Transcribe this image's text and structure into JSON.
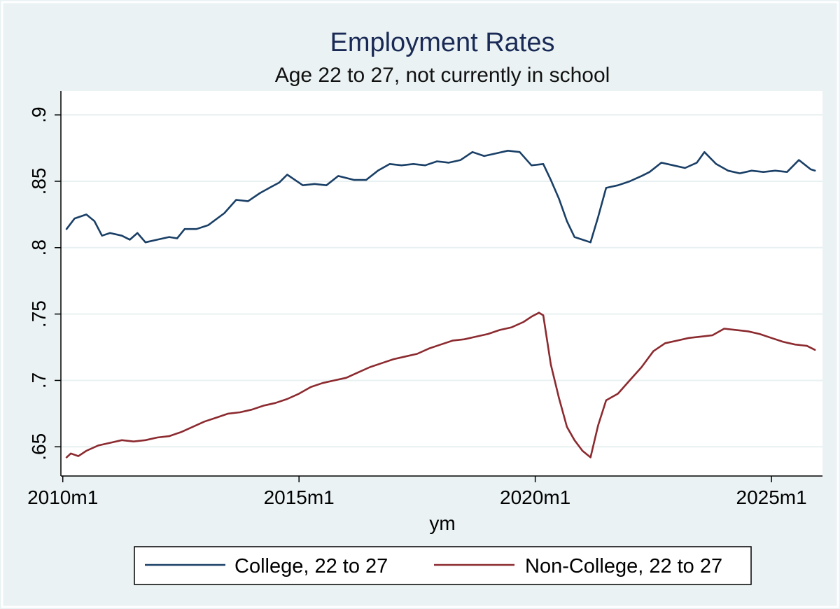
{
  "chart_data": {
    "type": "line",
    "title": "Employment Rates",
    "subtitle": "Age 22 to 27, not currently in school",
    "xlabel": "ym",
    "ylabel": "",
    "xlim": [
      2009.96,
      2026.08
    ],
    "ylim": [
      0.628,
      0.918
    ],
    "x_ticks": [
      {
        "label": "2010m1",
        "value": 2010.0
      },
      {
        "label": "2015m1",
        "value": 2015.0
      },
      {
        "label": "2020m1",
        "value": 2020.0
      },
      {
        "label": "2025m1",
        "value": 2025.0
      }
    ],
    "y_ticks": [
      {
        "label": ".65",
        "value": 0.65
      },
      {
        "label": ".7",
        "value": 0.7
      },
      {
        "label": ".75",
        "value": 0.75
      },
      {
        "label": ".8",
        "value": 0.8
      },
      {
        "label": ".85",
        "value": 0.85
      },
      {
        "label": ".9",
        "value": 0.9
      }
    ],
    "grid": true,
    "legend_position": "bottom",
    "series": [
      {
        "name": "College, 22 to 27",
        "color": "#1a3f66",
        "x": [
          2010.08,
          2010.25,
          2010.5,
          2010.67,
          2010.83,
          2011.0,
          2011.25,
          2011.42,
          2011.58,
          2011.75,
          2012.0,
          2012.25,
          2012.42,
          2012.58,
          2012.83,
          2013.08,
          2013.42,
          2013.67,
          2013.92,
          2014.17,
          2014.42,
          2014.58,
          2014.75,
          2015.08,
          2015.33,
          2015.58,
          2015.83,
          2016.17,
          2016.42,
          2016.67,
          2016.92,
          2017.17,
          2017.42,
          2017.67,
          2017.92,
          2018.17,
          2018.42,
          2018.67,
          2018.92,
          2019.17,
          2019.42,
          2019.67,
          2019.92,
          2020.17,
          2020.33,
          2020.5,
          2020.67,
          2020.83,
          2021.0,
          2021.17,
          2021.33,
          2021.5,
          2021.75,
          2022.0,
          2022.25,
          2022.42,
          2022.67,
          2022.92,
          2023.17,
          2023.42,
          2023.58,
          2023.83,
          2024.08,
          2024.33,
          2024.58,
          2024.83,
          2025.08,
          2025.33,
          2025.58,
          2025.83,
          2025.92
        ],
        "values": [
          0.814,
          0.822,
          0.825,
          0.82,
          0.809,
          0.811,
          0.809,
          0.806,
          0.811,
          0.804,
          0.806,
          0.808,
          0.807,
          0.814,
          0.814,
          0.817,
          0.826,
          0.836,
          0.835,
          0.841,
          0.846,
          0.849,
          0.855,
          0.847,
          0.848,
          0.847,
          0.854,
          0.851,
          0.851,
          0.858,
          0.863,
          0.862,
          0.863,
          0.862,
          0.865,
          0.864,
          0.866,
          0.872,
          0.869,
          0.871,
          0.873,
          0.872,
          0.862,
          0.863,
          0.851,
          0.837,
          0.82,
          0.808,
          0.806,
          0.804,
          0.823,
          0.845,
          0.847,
          0.85,
          0.854,
          0.857,
          0.864,
          0.862,
          0.86,
          0.864,
          0.872,
          0.863,
          0.858,
          0.856,
          0.858,
          0.857,
          0.858,
          0.857,
          0.866,
          0.859,
          0.858
        ]
      },
      {
        "name": "Non-College, 22 to 27",
        "color": "#8b2a2f",
        "x": [
          2010.08,
          2010.17,
          2010.33,
          2010.5,
          2010.75,
          2011.0,
          2011.25,
          2011.5,
          2011.75,
          2012.0,
          2012.25,
          2012.5,
          2012.75,
          2013.0,
          2013.25,
          2013.5,
          2013.75,
          2014.0,
          2014.25,
          2014.5,
          2014.75,
          2015.0,
          2015.25,
          2015.5,
          2015.75,
          2016.0,
          2016.25,
          2016.5,
          2016.75,
          2017.0,
          2017.25,
          2017.5,
          2017.75,
          2018.0,
          2018.25,
          2018.5,
          2018.75,
          2019.0,
          2019.25,
          2019.5,
          2019.75,
          2019.92,
          2020.08,
          2020.17,
          2020.33,
          2020.5,
          2020.67,
          2020.83,
          2021.0,
          2021.17,
          2021.33,
          2021.5,
          2021.75,
          2022.0,
          2022.25,
          2022.5,
          2022.75,
          2023.0,
          2023.25,
          2023.5,
          2023.75,
          2024.0,
          2024.25,
          2024.5,
          2024.75,
          2025.0,
          2025.25,
          2025.5,
          2025.75,
          2025.92
        ],
        "values": [
          0.642,
          0.645,
          0.643,
          0.647,
          0.651,
          0.653,
          0.655,
          0.654,
          0.655,
          0.657,
          0.658,
          0.661,
          0.665,
          0.669,
          0.672,
          0.675,
          0.676,
          0.678,
          0.681,
          0.683,
          0.686,
          0.69,
          0.695,
          0.698,
          0.7,
          0.702,
          0.706,
          0.71,
          0.713,
          0.716,
          0.718,
          0.72,
          0.724,
          0.727,
          0.73,
          0.731,
          0.733,
          0.735,
          0.738,
          0.74,
          0.744,
          0.748,
          0.751,
          0.749,
          0.712,
          0.687,
          0.665,
          0.655,
          0.647,
          0.642,
          0.666,
          0.685,
          0.69,
          0.7,
          0.71,
          0.722,
          0.728,
          0.73,
          0.732,
          0.733,
          0.734,
          0.739,
          0.738,
          0.737,
          0.735,
          0.732,
          0.729,
          0.727,
          0.726,
          0.723
        ]
      }
    ]
  }
}
